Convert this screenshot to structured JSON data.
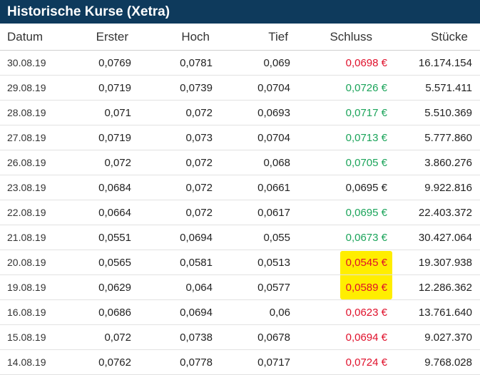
{
  "title": "Historische Kurse (Xetra)",
  "columns": {
    "datum": "Datum",
    "erster": "Erster",
    "hoch": "Hoch",
    "tief": "Tief",
    "schluss": "Schluss",
    "stueck": "Stücke"
  },
  "currency_symbol": "€",
  "colors": {
    "header_bg": "#0e3a5c",
    "down": "#e0102b",
    "up": "#1ba45a",
    "highlight": "#fff200"
  },
  "rows": [
    {
      "datum": "30.08.19",
      "erster": "0,0769",
      "hoch": "0,0781",
      "tief": "0,069",
      "schluss": "0,0698 €",
      "trend": "down",
      "highlight": false,
      "stueck": "16.174.154"
    },
    {
      "datum": "29.08.19",
      "erster": "0,0719",
      "hoch": "0,0739",
      "tief": "0,0704",
      "schluss": "0,0726 €",
      "trend": "up",
      "highlight": false,
      "stueck": "5.571.411"
    },
    {
      "datum": "28.08.19",
      "erster": "0,071",
      "hoch": "0,072",
      "tief": "0,0693",
      "schluss": "0,0717 €",
      "trend": "up",
      "highlight": false,
      "stueck": "5.510.369"
    },
    {
      "datum": "27.08.19",
      "erster": "0,0719",
      "hoch": "0,073",
      "tief": "0,0704",
      "schluss": "0,0713 €",
      "trend": "up",
      "highlight": false,
      "stueck": "5.777.860"
    },
    {
      "datum": "26.08.19",
      "erster": "0,072",
      "hoch": "0,072",
      "tief": "0,068",
      "schluss": "0,0705 €",
      "trend": "up",
      "highlight": false,
      "stueck": "3.860.276"
    },
    {
      "datum": "23.08.19",
      "erster": "0,0684",
      "hoch": "0,072",
      "tief": "0,0661",
      "schluss": "0,0695 €",
      "trend": "neutral",
      "highlight": false,
      "stueck": "9.922.816"
    },
    {
      "datum": "22.08.19",
      "erster": "0,0664",
      "hoch": "0,072",
      "tief": "0,0617",
      "schluss": "0,0695 €",
      "trend": "up",
      "highlight": false,
      "stueck": "22.403.372"
    },
    {
      "datum": "21.08.19",
      "erster": "0,0551",
      "hoch": "0,0694",
      "tief": "0,055",
      "schluss": "0,0673 €",
      "trend": "up",
      "highlight": false,
      "stueck": "30.427.064"
    },
    {
      "datum": "20.08.19",
      "erster": "0,0565",
      "hoch": "0,0581",
      "tief": "0,0513",
      "schluss": "0,0545 €",
      "trend": "down",
      "highlight": true,
      "stueck": "19.307.938"
    },
    {
      "datum": "19.08.19",
      "erster": "0,0629",
      "hoch": "0,064",
      "tief": "0,0577",
      "schluss": "0,0589 €",
      "trend": "down",
      "highlight": true,
      "stueck": "12.286.362"
    },
    {
      "datum": "16.08.19",
      "erster": "0,0686",
      "hoch": "0,0694",
      "tief": "0,06",
      "schluss": "0,0623 €",
      "trend": "down",
      "highlight": false,
      "stueck": "13.761.640"
    },
    {
      "datum": "15.08.19",
      "erster": "0,072",
      "hoch": "0,0738",
      "tief": "0,0678",
      "schluss": "0,0694 €",
      "trend": "down",
      "highlight": false,
      "stueck": "9.027.370"
    },
    {
      "datum": "14.08.19",
      "erster": "0,0762",
      "hoch": "0,0778",
      "tief": "0,0717",
      "schluss": "0,0724 €",
      "trend": "down",
      "highlight": false,
      "stueck": "9.768.028"
    }
  ]
}
